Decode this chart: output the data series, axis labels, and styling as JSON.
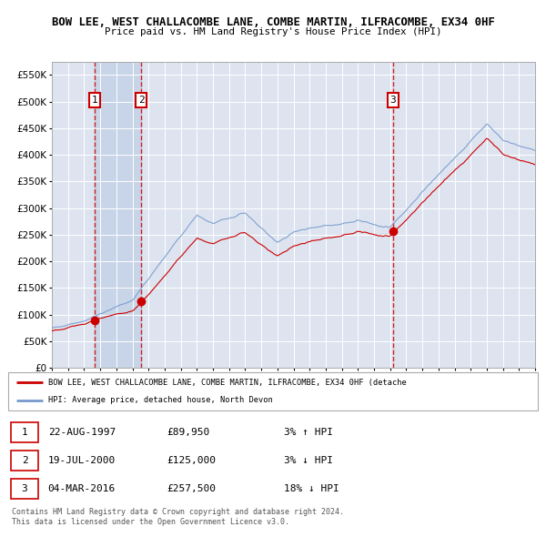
{
  "title1": "BOW LEE, WEST CHALLACOMBE LANE, COMBE MARTIN, ILFRACOMBE, EX34 0HF",
  "title2": "Price paid vs. HM Land Registry's House Price Index (HPI)",
  "ylim": [
    0,
    575000
  ],
  "yticks": [
    0,
    50000,
    100000,
    150000,
    200000,
    250000,
    300000,
    350000,
    400000,
    450000,
    500000,
    550000
  ],
  "ytick_labels": [
    "£0",
    "£50K",
    "£100K",
    "£150K",
    "£200K",
    "£250K",
    "£300K",
    "£350K",
    "£400K",
    "£450K",
    "£500K",
    "£550K"
  ],
  "x_start_year": 1995,
  "x_end_year": 2025,
  "plot_bg_color": "#dde4f0",
  "grid_color": "#ffffff",
  "sale1_date": 1997.64,
  "sale1_price": 89950,
  "sale2_date": 2000.55,
  "sale2_price": 125000,
  "sale3_date": 2016.17,
  "sale3_price": 257500,
  "legend_line1": "BOW LEE, WEST CHALLACOMBE LANE, COMBE MARTIN, ILFRACOMBE, EX34 0HF (detache",
  "legend_line2": "HPI: Average price, detached house, North Devon",
  "table_data": [
    [
      "1",
      "22-AUG-1997",
      "£89,950",
      "3% ↑ HPI"
    ],
    [
      "2",
      "19-JUL-2000",
      "£125,000",
      "3% ↓ HPI"
    ],
    [
      "3",
      "04-MAR-2016",
      "£257,500",
      "18% ↓ HPI"
    ]
  ],
  "footer1": "Contains HM Land Registry data © Crown copyright and database right 2024.",
  "footer2": "This data is licensed under the Open Government Licence v3.0.",
  "red_line_color": "#cc0000",
  "blue_line_color": "#7799cc",
  "dashed_line_color": "#cc0000",
  "shade1_color": "#c8d4e8",
  "marker_color": "#cc0000"
}
